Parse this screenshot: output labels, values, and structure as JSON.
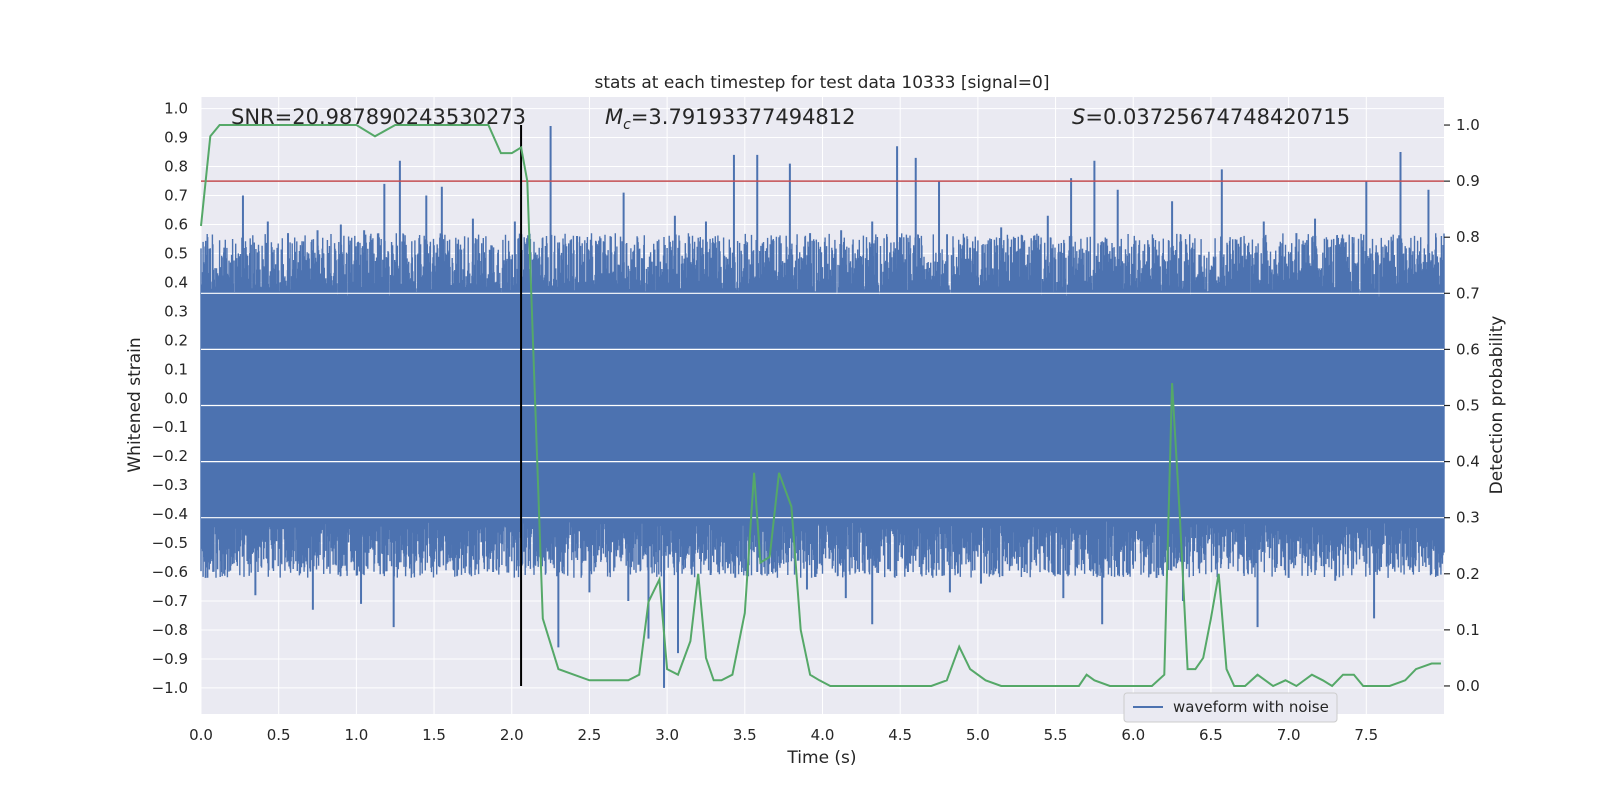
{
  "chart_data": {
    "type": "line",
    "title": "stats at each timestep for test data 10333 [signal=0]",
    "xlabel": "Time (s)",
    "ylabel_left": "Whitened strain",
    "ylabel_right": "Detection probability",
    "xlim": [
      0.0,
      8.0
    ],
    "ylim_left": [
      -1.09,
      1.04
    ],
    "ylim_right": [
      -0.05,
      1.05
    ],
    "x_ticks": [
      "0.0",
      "0.5",
      "1.0",
      "1.5",
      "2.0",
      "2.5",
      "3.0",
      "3.5",
      "4.0",
      "4.5",
      "5.0",
      "5.5",
      "6.0",
      "6.5",
      "7.0",
      "7.5"
    ],
    "x_tick_values": [
      0.0,
      0.5,
      1.0,
      1.5,
      2.0,
      2.5,
      3.0,
      3.5,
      4.0,
      4.5,
      5.0,
      5.5,
      6.0,
      6.5,
      7.0,
      7.5
    ],
    "y_left_ticks": [
      "1.0",
      "0.9",
      "0.8",
      "0.7",
      "0.6",
      "0.5",
      "0.4",
      "0.3",
      "0.2",
      "0.1",
      "0.0",
      "−0.1",
      "−0.2",
      "−0.3",
      "−0.4",
      "−0.5",
      "−0.6",
      "−0.7",
      "−0.8",
      "−0.9",
      "−1.0"
    ],
    "y_left_tick_values": [
      1.0,
      0.9,
      0.8,
      0.7,
      0.6,
      0.5,
      0.4,
      0.3,
      0.2,
      0.1,
      0.0,
      -0.1,
      -0.2,
      -0.3,
      -0.4,
      -0.5,
      -0.6,
      -0.7,
      -0.8,
      -0.9,
      -1.0
    ],
    "y_right_ticks": [
      "1.0",
      "0.9",
      "0.8",
      "0.7",
      "0.6",
      "0.5",
      "0.4",
      "0.3",
      "0.2",
      "0.1",
      "0.0"
    ],
    "y_right_tick_values": [
      1.0,
      0.9,
      0.8,
      0.7,
      0.6,
      0.5,
      0.4,
      0.3,
      0.2,
      0.1,
      0.0
    ],
    "threshold": 0.9,
    "marker_time": 2.06,
    "waveform": {
      "name": "waveform with noise",
      "color": "#4c72b0",
      "band_hi": 0.35,
      "band_lo": -0.42,
      "peaks_pos": [
        [
          0.15,
          0.52
        ],
        [
          0.27,
          0.7
        ],
        [
          0.43,
          0.61
        ],
        [
          0.56,
          0.57
        ],
        [
          0.75,
          0.58
        ],
        [
          0.9,
          0.6
        ],
        [
          1.05,
          0.58
        ],
        [
          1.18,
          0.74
        ],
        [
          1.28,
          0.82
        ],
        [
          1.45,
          0.7
        ],
        [
          1.55,
          0.73
        ],
        [
          1.75,
          0.62
        ],
        [
          2.02,
          0.61
        ],
        [
          2.25,
          0.94
        ],
        [
          2.42,
          0.56
        ],
        [
          2.72,
          0.71
        ],
        [
          3.05,
          0.63
        ],
        [
          3.25,
          0.61
        ],
        [
          3.43,
          0.84
        ],
        [
          3.58,
          0.84
        ],
        [
          3.79,
          0.81
        ],
        [
          3.92,
          0.57
        ],
        [
          4.12,
          0.58
        ],
        [
          4.32,
          0.61
        ],
        [
          4.48,
          0.87
        ],
        [
          4.6,
          0.83
        ],
        [
          4.75,
          0.75
        ],
        [
          4.95,
          0.52
        ],
        [
          5.15,
          0.59
        ],
        [
          5.45,
          0.63
        ],
        [
          5.6,
          0.76
        ],
        [
          5.75,
          0.82
        ],
        [
          5.9,
          0.72
        ],
        [
          6.25,
          0.68
        ],
        [
          6.57,
          0.79
        ],
        [
          6.84,
          0.61
        ],
        [
          7.05,
          0.57
        ],
        [
          7.17,
          0.62
        ],
        [
          7.5,
          0.75
        ],
        [
          7.72,
          0.85
        ],
        [
          7.9,
          0.72
        ]
      ],
      "peaks_neg": [
        [
          0.03,
          -0.62
        ],
        [
          0.18,
          -0.52
        ],
        [
          0.35,
          -0.68
        ],
        [
          0.5,
          -0.52
        ],
        [
          0.72,
          -0.73
        ],
        [
          1.03,
          -0.71
        ],
        [
          1.24,
          -0.79
        ],
        [
          1.48,
          -0.55
        ],
        [
          1.62,
          -0.56
        ],
        [
          1.88,
          -0.6
        ],
        [
          2.08,
          -0.53
        ],
        [
          2.3,
          -0.86
        ],
        [
          2.5,
          -0.67
        ],
        [
          2.75,
          -0.7
        ],
        [
          2.88,
          -0.83
        ],
        [
          2.98,
          -1.0
        ],
        [
          3.07,
          -0.88
        ],
        [
          3.28,
          -0.61
        ],
        [
          3.58,
          -0.6
        ],
        [
          3.9,
          -0.66
        ],
        [
          4.15,
          -0.69
        ],
        [
          4.32,
          -0.78
        ],
        [
          4.55,
          -0.6
        ],
        [
          4.82,
          -0.67
        ],
        [
          5.02,
          -0.64
        ],
        [
          5.3,
          -0.6
        ],
        [
          5.55,
          -0.69
        ],
        [
          5.8,
          -0.78
        ],
        [
          6.15,
          -0.62
        ],
        [
          6.32,
          -0.7
        ],
        [
          6.8,
          -0.79
        ],
        [
          7.0,
          -0.62
        ],
        [
          7.3,
          -0.63
        ],
        [
          7.55,
          -0.76
        ],
        [
          7.8,
          -0.6
        ],
        [
          7.96,
          -0.46
        ]
      ]
    },
    "probability": {
      "color": "#55a868",
      "x": [
        0.0,
        0.06,
        0.12,
        0.25,
        0.5,
        0.75,
        1.0,
        1.12,
        1.25,
        1.4,
        1.55,
        1.7,
        1.85,
        1.93,
        2.0,
        2.06,
        2.1,
        2.2,
        2.3,
        2.4,
        2.5,
        2.65,
        2.75,
        2.82,
        2.88,
        2.95,
        3.0,
        3.07,
        3.15,
        3.2,
        3.25,
        3.3,
        3.35,
        3.42,
        3.5,
        3.56,
        3.6,
        3.66,
        3.72,
        3.8,
        3.86,
        3.92,
        3.98,
        4.05,
        4.15,
        4.4,
        4.6,
        4.7,
        4.8,
        4.88,
        4.95,
        5.05,
        5.15,
        5.35,
        5.55,
        5.65,
        5.7,
        5.75,
        5.85,
        6.0,
        6.12,
        6.2,
        6.25,
        6.3,
        6.35,
        6.4,
        6.45,
        6.5,
        6.55,
        6.6,
        6.65,
        6.72,
        6.8,
        6.9,
        6.98,
        7.05,
        7.15,
        7.22,
        7.28,
        7.35,
        7.42,
        7.48,
        7.55,
        7.65,
        7.75,
        7.82,
        7.92,
        7.98
      ],
      "y": [
        0.82,
        0.98,
        1.0,
        1.0,
        1.0,
        1.0,
        1.0,
        0.98,
        1.0,
        1.0,
        1.0,
        1.0,
        1.0,
        0.95,
        0.95,
        0.96,
        0.9,
        0.12,
        0.03,
        0.02,
        0.01,
        0.01,
        0.01,
        0.02,
        0.15,
        0.19,
        0.03,
        0.02,
        0.08,
        0.2,
        0.05,
        0.01,
        0.01,
        0.02,
        0.13,
        0.38,
        0.22,
        0.23,
        0.38,
        0.32,
        0.1,
        0.02,
        0.01,
        0.0,
        0.0,
        0.0,
        0.0,
        0.0,
        0.01,
        0.07,
        0.03,
        0.01,
        0.0,
        0.0,
        0.0,
        0.0,
        0.02,
        0.01,
        0.0,
        0.0,
        0.0,
        0.02,
        0.54,
        0.3,
        0.03,
        0.03,
        0.05,
        0.12,
        0.2,
        0.03,
        0.0,
        0.0,
        0.02,
        0.0,
        0.01,
        0.0,
        0.02,
        0.01,
        0.0,
        0.02,
        0.02,
        0.0,
        0.0,
        0.0,
        0.01,
        0.03,
        0.04,
        0.04
      ]
    },
    "annotations": {
      "snr": "SNR=20.987890243530273",
      "mc_symbol": "M",
      "mc_sub": "c",
      "mc_value": "=3.79193377494812",
      "s_symbol": "S",
      "s_value": "=0.03725674748420715"
    },
    "legend": {
      "entries": [
        "waveform with noise"
      ],
      "placement": "bottom-right"
    }
  },
  "colors": {
    "plot_bg": "#eaeaf2",
    "grid": "#ffffff",
    "waveform": "#4c72b0",
    "probability": "#55a868",
    "threshold": "#c44e52",
    "marker": "#000000"
  }
}
